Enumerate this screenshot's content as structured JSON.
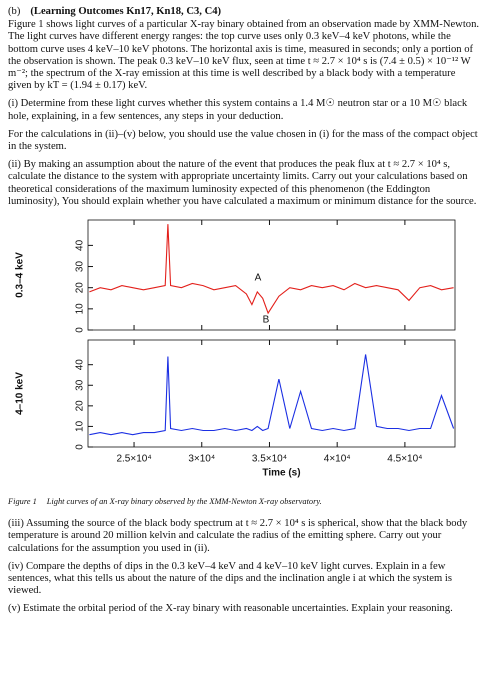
{
  "header": {
    "label": "(b)",
    "heading": "(Learning Outcomes Kn17, Kn18, C3, C4)"
  },
  "paragraphs": [
    "Figure 1 shows light curves of a particular X-ray binary obtained from an observation made by XMM-Newton. The light curves have different energy ranges: the top curve uses only 0.3 keV–4 keV photons, while the bottom curve uses 4 keV–10 keV photons. The horizontal axis is time, measured in seconds; only a portion of the observation is shown. The peak 0.3 keV–10 keV flux, seen at time t ≈ 2.7 × 10⁴ s is (7.4 ± 0.5) × 10⁻¹² W m⁻²; the spectrum of the X-ray emission at this time is well described by a black body with a temperature given by kT = (1.94 ± 0.17) keV.",
    "(i) Determine from these light curves whether this system contains a 1.4 M☉ neutron star or a 10 M☉ black hole, explaining, in a few sentences, any steps in your deduction.",
    "For the calculations in (ii)–(v) below, you should use the value chosen in (i) for the mass of the compact object in the system.",
    "(ii) By making an assumption about the nature of the event that produces the peak flux at t ≈ 2.7 × 10⁴ s, calculate the distance to the system with appropriate uncertainty limits. Carry out your calculations based on theoretical considerations of the maximum luminosity expected of this phenomenon (the Eddington luminosity), You should explain whether you have calculated a maximum or minimum distance for the source."
  ],
  "caption": {
    "label": "Figure 1",
    "text": "Light curves of an X-ray binary observed by the XMM-Newton X-ray observatory."
  },
  "questions": [
    "(iii) Assuming the source of the black body spectrum at t ≈ 2.7 × 10⁴ s is spherical, show that the black body temperature is around 20 million kelvin and calculate the radius of the emitting sphere. Carry out your calculations for the assumption you used in (ii).",
    "(iv) Compare the depths of dips in the 0.3 keV–4 keV and 4 keV–10 keV light curves. Explain in a few sentences, what this tells us about the nature of the dips and the inclination angle i at which the system is viewed.",
    "(v) Estimate the orbital period of the X-ray binary with reasonable uncertainties. Explain your reasoning."
  ],
  "chart_data": [
    {
      "type": "line",
      "ylabel": "0.3–4 keV",
      "color": "#e3201b",
      "annotations": [
        "A",
        "B"
      ],
      "x": [
        21700,
        22500,
        23300,
        24100,
        24900,
        25700,
        26500,
        27300,
        27500,
        27700,
        28500,
        29300,
        30100,
        30900,
        31700,
        32500,
        33300,
        33700,
        34100,
        34500,
        34900,
        35700,
        36500,
        37300,
        38100,
        38900,
        39700,
        40500,
        41300,
        42100,
        42900,
        43700,
        44500,
        45300,
        46100,
        46900,
        47700,
        48600
      ],
      "values": [
        18,
        20,
        19,
        21,
        20,
        19,
        20,
        21,
        50,
        21,
        20,
        22,
        21,
        19,
        20,
        21,
        17,
        12,
        18,
        15,
        8,
        16,
        20,
        19,
        21,
        20,
        21,
        19,
        22,
        20,
        21,
        20,
        19,
        14,
        20,
        21,
        19,
        20
      ],
      "xlim": [
        21600,
        48700
      ],
      "xticks": [
        25000,
        30000,
        35000,
        40000,
        45000
      ],
      "ylim": [
        0,
        52
      ],
      "yticks": [
        0,
        10,
        20,
        30,
        40
      ]
    },
    {
      "type": "line",
      "ylabel": "4–10 keV",
      "xlabel": "Time (s)",
      "color": "#1b2fe3",
      "x": [
        21700,
        22500,
        23300,
        24100,
        24900,
        25700,
        26500,
        27300,
        27500,
        27700,
        28500,
        29300,
        30100,
        30900,
        31700,
        32500,
        33300,
        33700,
        34100,
        34500,
        34900,
        35700,
        36500,
        37300,
        38100,
        38900,
        39700,
        40500,
        41300,
        42100,
        42900,
        43700,
        44500,
        45300,
        46100,
        46900,
        47700,
        48600
      ],
      "values": [
        6,
        7,
        6,
        7,
        6,
        7,
        7,
        8,
        44,
        9,
        8,
        9,
        8,
        8,
        9,
        8,
        9,
        8,
        10,
        8,
        9,
        33,
        9,
        27,
        9,
        8,
        9,
        8,
        9,
        45,
        10,
        9,
        9,
        8,
        9,
        9,
        25,
        9
      ],
      "xlim": [
        21600,
        48700
      ],
      "xticks": [
        {
          "value": 25000,
          "label": "2.5×10⁴"
        },
        {
          "value": 30000,
          "label": "3×10⁴"
        },
        {
          "value": 35000,
          "label": "3.5×10⁴"
        },
        {
          "value": 40000,
          "label": "4×10⁴"
        },
        {
          "value": 45000,
          "label": "4.5×10⁴"
        }
      ],
      "ylim": [
        0,
        52
      ],
      "yticks": [
        0,
        10,
        20,
        30,
        40
      ]
    }
  ]
}
